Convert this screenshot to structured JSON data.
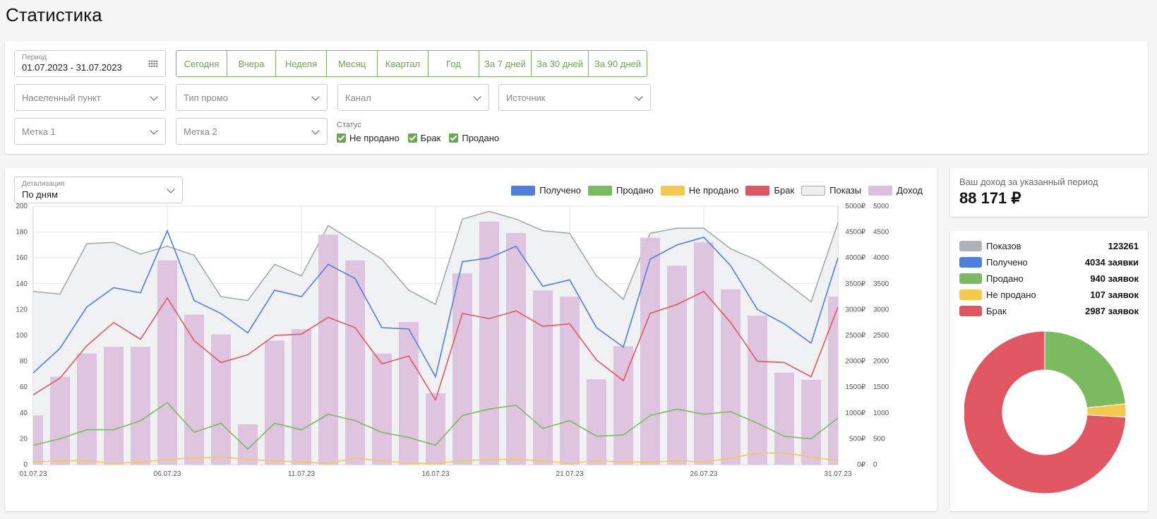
{
  "page": {
    "title": "Статистика"
  },
  "filters": {
    "period_label": "Период",
    "period_value": "01.07.2023 - 31.07.2023",
    "quick_ranges": [
      "Сегодня",
      "Вчера",
      "Неделя",
      "Месяц",
      "Квартал",
      "Год",
      "За 7 дней",
      "За 30 дней",
      "За 90 дней"
    ],
    "selects": {
      "city": "Населенный пункт",
      "promo_type": "Тип промо",
      "channel": "Канал",
      "source": "Источник",
      "tag1": "Метка 1",
      "tag2": "Метка 2"
    },
    "status_label": "Статус",
    "statuses": [
      "Не продано",
      "Брак",
      "Продано"
    ],
    "accent_color": "#6aa84f"
  },
  "chart_panel": {
    "detail_label": "Детализация",
    "detail_value": "По дням",
    "legend": [
      {
        "name": "Получено",
        "color": "#4f7fdc"
      },
      {
        "name": "Продано",
        "color": "#7cba5f"
      },
      {
        "name": "Не продано",
        "color": "#f5c94e"
      },
      {
        "name": "Брак",
        "color": "#e05663"
      },
      {
        "name": "Показы",
        "color": "#e9ebed"
      },
      {
        "name": "Доход",
        "color": "#dbbfdc"
      }
    ]
  },
  "chart_data": {
    "type": "bar",
    "x": [
      "01.07.23",
      "02.07.23",
      "03.07.23",
      "04.07.23",
      "05.07.23",
      "06.07.23",
      "07.07.23",
      "08.07.23",
      "09.07.23",
      "10.07.23",
      "11.07.23",
      "12.07.23",
      "13.07.23",
      "14.07.23",
      "15.07.23",
      "16.07.23",
      "17.07.23",
      "18.07.23",
      "19.07.23",
      "20.07.23",
      "21.07.23",
      "22.07.23",
      "23.07.23",
      "24.07.23",
      "25.07.23",
      "26.07.23",
      "27.07.23",
      "28.07.23",
      "29.07.23",
      "30.07.23",
      "31.07.23"
    ],
    "x_tick_labels": [
      "01.07.23",
      "06.07.23",
      "11.07.23",
      "16.07.23",
      "21.07.23",
      "26.07.23",
      "31.07.23"
    ],
    "y_left_ticks": [
      0,
      20,
      40,
      60,
      80,
      100,
      120,
      140,
      160,
      180,
      200
    ],
    "y_right_currency_ticks": [
      "0₽",
      "500₽",
      "1000₽",
      "1500₽",
      "2000₽",
      "2500₽",
      "3000₽",
      "3500₽",
      "4000₽",
      "4500₽",
      "5000₽"
    ],
    "y_right_ticks": [
      0,
      500,
      1000,
      1500,
      2000,
      2500,
      3000,
      3500,
      4000,
      4500,
      5000
    ],
    "ylim_left": [
      0,
      200
    ],
    "ylim_right": [
      0,
      5000
    ],
    "grid": true,
    "series": [
      {
        "name": "Показы",
        "kind": "area",
        "values": [
          134,
          132,
          171,
          172,
          163,
          169,
          162,
          130,
          127,
          155,
          146,
          185,
          172,
          159,
          135,
          124,
          190,
          196,
          190,
          181,
          179,
          146,
          128,
          179,
          183,
          183,
          167,
          158,
          142,
          126,
          187
        ]
      },
      {
        "name": "Получено",
        "kind": "line",
        "values": [
          71,
          90,
          122,
          137,
          133,
          181,
          127,
          117,
          102,
          135,
          130,
          155,
          144,
          106,
          105,
          68,
          157,
          160,
          169,
          138,
          143,
          106,
          91,
          159,
          170,
          176,
          154,
          120,
          109,
          94,
          160
        ]
      },
      {
        "name": "Продано",
        "kind": "line",
        "values": [
          15,
          20,
          27,
          27,
          34,
          48,
          25,
          32,
          12,
          32,
          27,
          39,
          34,
          25,
          21,
          15,
          38,
          43,
          46,
          28,
          34,
          22,
          23,
          38,
          43,
          39,
          41,
          32,
          22,
          20,
          36
        ]
      },
      {
        "name": "Не продано",
        "kind": "line",
        "values": [
          2,
          3,
          3,
          1,
          2,
          4,
          5,
          6,
          4,
          3,
          2,
          1,
          5,
          3,
          1,
          1,
          3,
          4,
          4,
          3,
          1,
          3,
          2,
          2,
          3,
          2,
          5,
          9,
          9,
          6,
          3
        ]
      },
      {
        "name": "Брак",
        "kind": "line",
        "values": [
          54,
          67,
          92,
          110,
          97,
          129,
          96,
          79,
          85,
          100,
          101,
          114,
          106,
          78,
          84,
          50,
          117,
          113,
          119,
          107,
          109,
          81,
          65,
          117,
          124,
          134,
          110,
          80,
          79,
          68,
          122
        ]
      },
      {
        "name": "Доход",
        "kind": "bar",
        "axis": "right",
        "values": [
          950,
          1700,
          2150,
          2280,
          2280,
          3950,
          2900,
          2520,
          780,
          2400,
          2620,
          4450,
          3950,
          2150,
          2760,
          1380,
          3700,
          4700,
          4480,
          3370,
          3250,
          1650,
          2290,
          4390,
          3850,
          4300,
          3390,
          2880,
          1780,
          1640,
          3250
        ]
      }
    ]
  },
  "income": {
    "label": "Ваш доход за указанный период",
    "value": "88 171 ₽"
  },
  "summary": {
    "rows": [
      {
        "name": "Показов",
        "value": "123261",
        "color": "#aeb3b8"
      },
      {
        "name": "Получено",
        "value": "4034 заявки",
        "color": "#4f7fdc"
      },
      {
        "name": "Продано",
        "value": "940 заявок",
        "color": "#7cba5f"
      },
      {
        "name": "Не продано",
        "value": "107 заявок",
        "color": "#f5c94e"
      },
      {
        "name": "Брак",
        "value": "2987 заявок",
        "color": "#e05663"
      }
    ],
    "donut": [
      {
        "name": "Продано",
        "value": 940,
        "color": "#7cba5f"
      },
      {
        "name": "Не продано",
        "value": 107,
        "color": "#f5c94e"
      },
      {
        "name": "Брак",
        "value": 2987,
        "color": "#e05663"
      }
    ]
  }
}
